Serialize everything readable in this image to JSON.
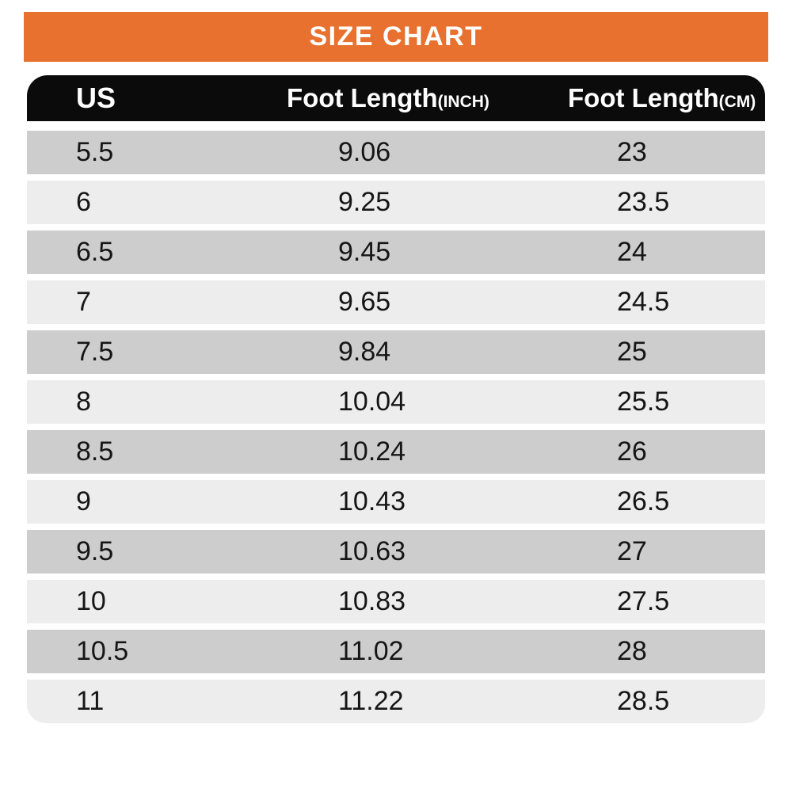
{
  "banner": {
    "title": "SIZE CHART"
  },
  "colors": {
    "banner_orange": "#E8712F",
    "header_black": "#0B0B0B",
    "row_dark": "#CDCDCD",
    "row_light": "#EDEDED",
    "page_bg": "#FFFFFF",
    "header_text": "#FFFFFF",
    "cell_text": "#161616"
  },
  "table": {
    "headers": [
      {
        "label": "US",
        "unit": ""
      },
      {
        "label": "Foot Length",
        "unit": "(INCH)"
      },
      {
        "label": "Foot Length",
        "unit": "(CM)"
      }
    ],
    "rows": [
      [
        "5.5",
        "9.06",
        "23"
      ],
      [
        "6",
        "9.25",
        "23.5"
      ],
      [
        "6.5",
        "9.45",
        "24"
      ],
      [
        "7",
        "9.65",
        "24.5"
      ],
      [
        "7.5",
        "9.84",
        "25"
      ],
      [
        "8",
        "10.04",
        "25.5"
      ],
      [
        "8.5",
        "10.24",
        "26"
      ],
      [
        "9",
        "10.43",
        "26.5"
      ],
      [
        "9.5",
        "10.63",
        "27"
      ],
      [
        "10",
        "10.83",
        "27.5"
      ],
      [
        "10.5",
        "11.02",
        "28"
      ],
      [
        "11",
        "11.22",
        "28.5"
      ]
    ]
  },
  "chart_data": {
    "type": "table",
    "title": "SIZE CHART",
    "columns": [
      "US",
      "Foot Length (INCH)",
      "Foot Length (CM)"
    ],
    "rows": [
      [
        "5.5",
        "9.06",
        "23"
      ],
      [
        "6",
        "9.25",
        "23.5"
      ],
      [
        "6.5",
        "9.45",
        "24"
      ],
      [
        "7",
        "9.65",
        "24.5"
      ],
      [
        "7.5",
        "9.84",
        "25"
      ],
      [
        "8",
        "10.04",
        "25.5"
      ],
      [
        "8.5",
        "10.24",
        "26"
      ],
      [
        "9",
        "10.43",
        "26.5"
      ],
      [
        "9.5",
        "10.63",
        "27"
      ],
      [
        "10",
        "10.83",
        "27.5"
      ],
      [
        "10.5",
        "11.02",
        "28"
      ],
      [
        "11",
        "11.22",
        "28.5"
      ]
    ]
  }
}
